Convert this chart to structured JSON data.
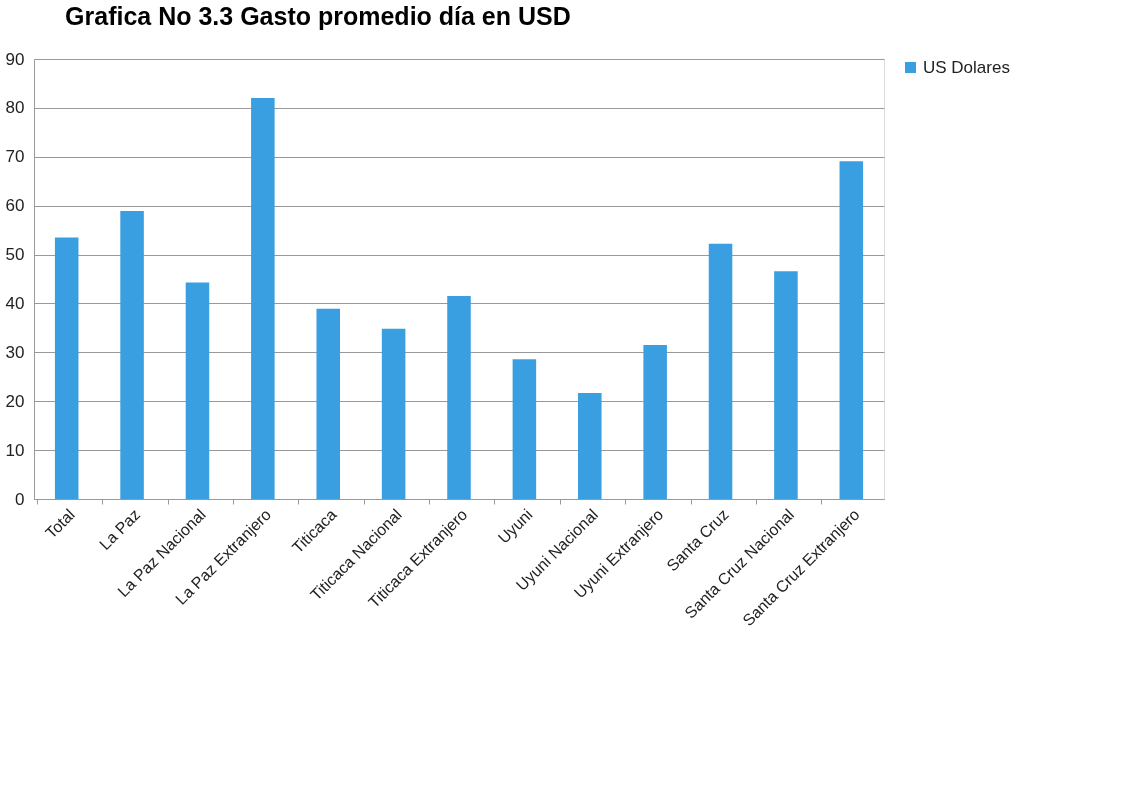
{
  "chart_data": {
    "type": "bar",
    "title": "Grafica No 3.3 Gasto promedio día en USD",
    "categories": [
      "Total",
      "La Paz",
      "La Paz Nacional",
      "La Paz Extranjero",
      "Titicaca",
      "Titicaca Nacional",
      "Titicaca Extranjero",
      "Uyuni",
      "Uyuni Nacional",
      "Uyuni Extranjero",
      "Santa Cruz",
      "Santa Cruz Nacional",
      "Santa Cruz Extranjero"
    ],
    "series": [
      {
        "name": "US Dolares",
        "color": "#3a9fe0",
        "values": [
          53.5,
          58.9,
          44.3,
          82.0,
          38.9,
          34.8,
          41.5,
          28.6,
          21.7,
          31.5,
          52.2,
          46.6,
          69.1
        ]
      }
    ],
    "ylim": [
      0,
      90
    ],
    "yticks": [
      0,
      10,
      20,
      30,
      40,
      50,
      60,
      70,
      80,
      90
    ],
    "grid": "y",
    "legend": "right"
  }
}
